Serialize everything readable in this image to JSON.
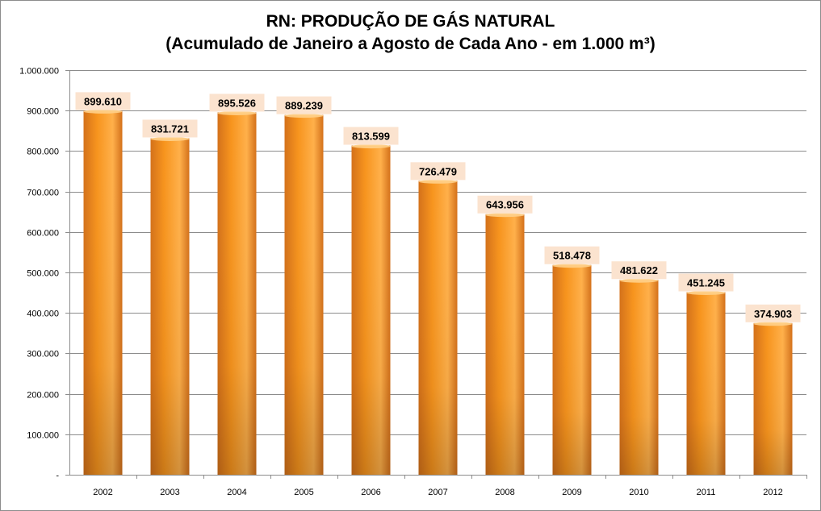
{
  "title_line1": "RN: PRODUÇÃO DE GÁS NATURAL",
  "title_line2": "(Acumulado de Janeiro a Agosto de Cada Ano - em 1.000 m³)",
  "colors": {
    "bar_light": "#ffb04a",
    "bar_mid": "#f7941d",
    "bar_dark": "#d4711a",
    "label_bg": "#fbe3cf",
    "grid": "#8c8c8c"
  },
  "chart_data": {
    "type": "bar",
    "title": "RN: PRODUÇÃO DE GÁS NATURAL (Acumulado de Janeiro a Agosto de Cada Ano - em 1.000 m³)",
    "categories": [
      "2002",
      "2003",
      "2004",
      "2005",
      "2006",
      "2007",
      "2008",
      "2009",
      "2010",
      "2011",
      "2012"
    ],
    "values": [
      899610,
      831721,
      895526,
      889239,
      813599,
      726479,
      643956,
      518478,
      481622,
      451245,
      374903
    ],
    "data_labels": [
      "899.610",
      "831.721",
      "895.526",
      "889.239",
      "813.599",
      "726.479",
      "643.956",
      "518.478",
      "481.622",
      "451.245",
      "374.903"
    ],
    "ylim": [
      0,
      1000000
    ],
    "y_ticks": [
      0,
      100000,
      200000,
      300000,
      400000,
      500000,
      600000,
      700000,
      800000,
      900000,
      1000000
    ],
    "y_tick_labels": [
      "-",
      "100.000",
      "200.000",
      "300.000",
      "400.000",
      "500.000",
      "600.000",
      "700.000",
      "800.000",
      "900.000",
      "1.000.000"
    ],
    "xlabel": "",
    "ylabel": "",
    "grid": true,
    "legend": "none"
  }
}
